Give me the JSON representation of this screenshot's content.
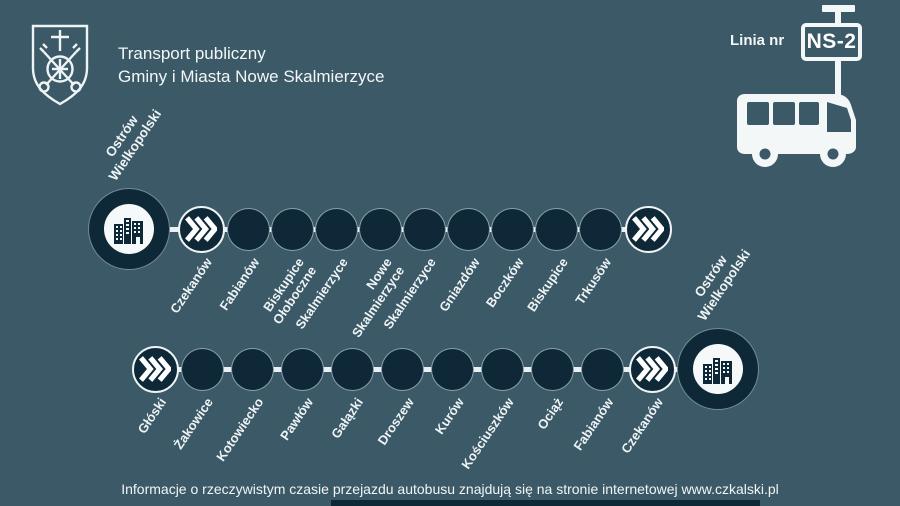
{
  "header": {
    "title_line1": "Transport publiczny",
    "title_line2": "Gminy i Miasta Nowe Skalmierzyce"
  },
  "line_sign": {
    "label": "Linia nr",
    "number": "NS-2"
  },
  "route": {
    "rows": [
      {
        "nodes": [
          {
            "kind": "terminus",
            "label_position": "above",
            "label_lines": [
              "Ostrów",
              "Wielkopolski"
            ]
          },
          {
            "kind": "chevron",
            "label_lines": [
              "Czekanów"
            ]
          },
          {
            "kind": "stop",
            "label_lines": [
              "Fabianów"
            ]
          },
          {
            "kind": "stop",
            "label_lines": [
              "Biskupice",
              "Ołoboczne"
            ]
          },
          {
            "kind": "stop",
            "label_lines": [
              "Skalmierzyce"
            ]
          },
          {
            "kind": "stop",
            "label_lines": [
              "Nowe",
              "Skalmierzyce"
            ]
          },
          {
            "kind": "stop",
            "label_lines": [
              "Skalmierzyce"
            ]
          },
          {
            "kind": "stop",
            "label_lines": [
              "Gniazdów"
            ]
          },
          {
            "kind": "stop",
            "label_lines": [
              "Boczków"
            ]
          },
          {
            "kind": "stop",
            "label_lines": [
              "Biskupice"
            ]
          },
          {
            "kind": "stop",
            "label_lines": [
              "Trkusów"
            ]
          },
          {
            "kind": "chevron"
          }
        ]
      },
      {
        "nodes": [
          {
            "kind": "chevron",
            "label_lines": [
              "Głóski"
            ]
          },
          {
            "kind": "stop",
            "label_lines": [
              "Żakowice"
            ]
          },
          {
            "kind": "stop",
            "label_lines": [
              "Kotowiecko"
            ]
          },
          {
            "kind": "stop",
            "label_lines": [
              "Pawłów"
            ]
          },
          {
            "kind": "stop",
            "label_lines": [
              "Gałązki"
            ]
          },
          {
            "kind": "stop",
            "label_lines": [
              "Droszew"
            ]
          },
          {
            "kind": "stop",
            "label_lines": [
              "Kurów"
            ]
          },
          {
            "kind": "stop",
            "label_lines": [
              "Kościuszków"
            ]
          },
          {
            "kind": "stop",
            "label_lines": [
              "Ociąż"
            ]
          },
          {
            "kind": "stop",
            "label_lines": [
              "Fabianów"
            ]
          },
          {
            "kind": "chevron",
            "label_lines": [
              "Czekanów"
            ]
          },
          {
            "kind": "terminus",
            "label_position": "above",
            "label_lines": [
              "Ostrów",
              "Wielkopolski"
            ]
          }
        ]
      }
    ]
  },
  "footer": {
    "info": "Informacje o rzeczywistym czasie przejazdu autobusu znajdują się na stronie internetowej www.czkalski.pl"
  },
  "colors": {
    "background": "#3b5966",
    "node_fill": "#0e2837",
    "accent_white": "#f4f7f8"
  },
  "icons": {
    "coat_of_arms": "coat-of-arms-icon",
    "bus": "bus-icon",
    "bus_stop_sign": "bus-stop-sign",
    "city_terminus": "city-buildings-icon",
    "transfer_arrows": "triple-chevron-icon"
  }
}
